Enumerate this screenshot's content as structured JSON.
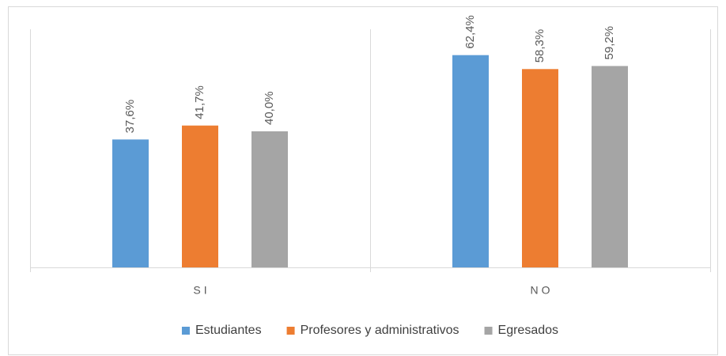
{
  "chart_data": {
    "type": "bar",
    "categories": [
      "SI",
      "NO"
    ],
    "series": [
      {
        "name": "Estudiantes",
        "color": "#5b9bd5",
        "values": [
          37.6,
          62.4
        ],
        "value_labels": [
          "37,6%",
          "62,4%"
        ]
      },
      {
        "name": "Profesores y administrativos",
        "color": "#ed7d31",
        "values": [
          41.7,
          58.3
        ],
        "value_labels": [
          "41,7%",
          "58,3%"
        ]
      },
      {
        "name": "Egresados",
        "color": "#a5a5a5",
        "values": [
          40.0,
          59.2
        ],
        "value_labels": [
          "40,0%",
          "59,2%"
        ]
      }
    ],
    "ylim": [
      0,
      70
    ],
    "legend": "bottom"
  }
}
